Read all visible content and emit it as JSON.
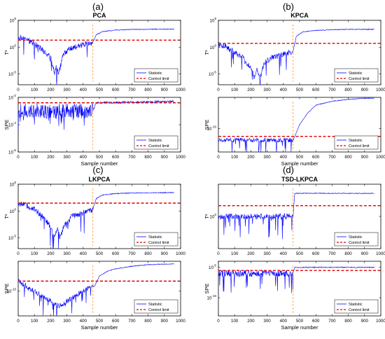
{
  "colors": {
    "statistic": "#0000ff",
    "control_limit": "#e00000",
    "fault_line": "#ff8c1a",
    "axis": "#000000"
  },
  "panels": [
    {
      "letter": "(a)",
      "title": "PCA"
    },
    {
      "letter": "(b)",
      "title": "KPCA"
    },
    {
      "letter": "(c)",
      "title": "LKPCA"
    },
    {
      "letter": "(d)",
      "title": "TSD-LKPCA"
    }
  ],
  "chart_data": [
    {
      "type": "line",
      "panel": "(a)",
      "title": "PCA",
      "ylabel": "T²",
      "xlabel": "",
      "yscale": "log",
      "xlim": [
        0,
        1000
      ],
      "ylim": [
        1e-07,
        100000.0
      ],
      "xticks": [
        "0",
        "100",
        "200",
        "300",
        "400",
        "500",
        "600",
        "700",
        "800",
        "900",
        "1000"
      ],
      "yticks": [
        {
          "exp": "5",
          "value": 100000.0
        },
        {
          "exp": "0",
          "value": 1
        },
        {
          "exp": "-5",
          "value": 1e-05
        }
      ],
      "fault_sample": 460,
      "control_limit": 20,
      "legend": [
        "Statistic",
        "Control limit"
      ],
      "legend_position": "bottom-right",
      "series": [
        {
          "name": "Statistic",
          "points": [
            [
              0,
              80
            ],
            [
              50,
              30
            ],
            [
              100,
              5
            ],
            [
              150,
              0.3
            ],
            [
              200,
              0.01
            ],
            [
              225,
              1e-05
            ],
            [
              235,
              0.0002
            ],
            [
              250,
              1e-05
            ],
            [
              275,
              0.05
            ],
            [
              300,
              0.2
            ],
            [
              350,
              1
            ],
            [
              400,
              3
            ],
            [
              440,
              5
            ],
            [
              460,
              8
            ],
            [
              480,
              200
            ],
            [
              520,
              800
            ],
            [
              600,
              1500
            ],
            [
              700,
              2000
            ],
            [
              800,
              2200
            ],
            [
              960,
              2300
            ]
          ]
        }
      ]
    },
    {
      "type": "line",
      "panel": "(a)",
      "ylabel": "SPE",
      "xlabel": "Sample number",
      "yscale": "log",
      "xlim": [
        0,
        1000
      ],
      "ylim": [
        1e-06,
        0.01
      ],
      "xticks": [
        "0",
        "100",
        "200",
        "300",
        "400",
        "500",
        "600",
        "700",
        "800",
        "900",
        "1000"
      ],
      "yticks": [
        {
          "exp": "-2",
          "value": 0.01
        },
        {
          "exp": "-4",
          "value": 0.0001
        },
        {
          "exp": "-6",
          "value": 1e-06
        }
      ],
      "fault_sample": 460,
      "control_limit": 0.004,
      "legend": [
        "Statistic",
        "Control limit"
      ],
      "legend_position": "bottom-right",
      "series": [
        {
          "name": "Statistic",
          "points": [
            [
              0,
              0.001
            ],
            [
              460,
              0.001
            ],
            [
              480,
              0.004
            ],
            [
              960,
              0.005
            ]
          ]
        }
      ]
    },
    {
      "type": "line",
      "panel": "(b)",
      "title": "KPCA",
      "ylabel": "T²",
      "xlabel": "",
      "yscale": "log",
      "xlim": [
        0,
        1000
      ],
      "ylim": [
        1e-07,
        100000.0
      ],
      "xticks": [
        "0",
        "100",
        "200",
        "300",
        "400",
        "500",
        "600",
        "700",
        "800",
        "900",
        "1000"
      ],
      "yticks": [
        {
          "exp": "5",
          "value": 100000.0
        },
        {
          "exp": "0",
          "value": 1
        },
        {
          "exp": "-5",
          "value": 1e-05
        }
      ],
      "fault_sample": 460,
      "control_limit": 5,
      "legend": [
        "Statistic",
        "Control limit"
      ],
      "legend_position": "bottom-right",
      "series": [
        {
          "name": "Statistic",
          "points": [
            [
              0,
              5
            ],
            [
              50,
              1
            ],
            [
              100,
              0.1
            ],
            [
              150,
              0.01
            ],
            [
              200,
              0.0001
            ],
            [
              225,
              1e-06
            ],
            [
              240,
              0.0001
            ],
            [
              255,
              1e-06
            ],
            [
              280,
              0.001
            ],
            [
              330,
              0.01
            ],
            [
              400,
              0.05
            ],
            [
              440,
              0.1
            ],
            [
              460,
              0.2
            ],
            [
              480,
              100
            ],
            [
              520,
              700
            ],
            [
              600,
              1300
            ],
            [
              700,
              1800
            ],
            [
              800,
              2000
            ],
            [
              960,
              2100
            ]
          ]
        }
      ]
    },
    {
      "type": "line",
      "panel": "(b)",
      "ylabel": "SPE",
      "xlabel": "Sample number",
      "yscale": "log",
      "xlim": [
        0,
        1000
      ],
      "ylim": [
        1e-16,
        0.01
      ],
      "xticks": [
        "0",
        "100",
        "200",
        "300",
        "400",
        "500",
        "600",
        "700",
        "800",
        "900",
        "1000"
      ],
      "yticks": [
        {
          "exp": "-10",
          "value": 1e-10
        }
      ],
      "fault_sample": 460,
      "control_limit": 1e-12,
      "legend": [
        "Statistic",
        "Control limit"
      ],
      "legend_position": "bottom-right",
      "series": [
        {
          "name": "Statistic",
          "points": [
            [
              0,
              1e-13
            ],
            [
              460,
              1e-13
            ],
            [
              470,
              1e-12
            ],
            [
              500,
              1e-09
            ],
            [
              550,
              1e-06
            ],
            [
              600,
              0.0001
            ],
            [
              700,
              0.001
            ],
            [
              800,
              0.003
            ],
            [
              900,
              0.006
            ],
            [
              960,
              0.006
            ]
          ]
        }
      ]
    },
    {
      "type": "line",
      "panel": "(c)",
      "title": "LKPCA",
      "ylabel": "T²",
      "xlabel": "",
      "yscale": "log",
      "xlim": [
        0,
        1000
      ],
      "ylim": [
        1e-07,
        100000.0
      ],
      "xticks": [
        "0",
        "100",
        "200",
        "300",
        "400",
        "500",
        "600",
        "700",
        "800",
        "900",
        "1000"
      ],
      "yticks": [
        {
          "exp": "5",
          "value": 100000.0
        },
        {
          "exp": "0",
          "value": 1
        },
        {
          "exp": "-5",
          "value": 1e-05
        }
      ],
      "fault_sample": 460,
      "control_limit": 30,
      "legend": [
        "Statistic",
        "Control limit"
      ],
      "legend_position": "bottom-right",
      "series": [
        {
          "name": "Statistic",
          "points": [
            [
              0,
              30
            ],
            [
              50,
              10
            ],
            [
              100,
              2
            ],
            [
              150,
              0.1
            ],
            [
              200,
              0.001
            ],
            [
              225,
              1e-05
            ],
            [
              240,
              0.001
            ],
            [
              255,
              1e-05
            ],
            [
              280,
              0.001
            ],
            [
              330,
              0.1
            ],
            [
              400,
              0.5
            ],
            [
              440,
              1
            ],
            [
              460,
              2
            ],
            [
              480,
              200
            ],
            [
              520,
              1000
            ],
            [
              600,
              1800
            ],
            [
              700,
              2300
            ],
            [
              800,
              2600
            ],
            [
              960,
              2800
            ]
          ]
        }
      ]
    },
    {
      "type": "line",
      "panel": "(c)",
      "ylabel": "SPE",
      "xlabel": "Sample number",
      "yscale": "log",
      "xlim": [
        0,
        1000
      ],
      "ylim": [
        1e-15,
        0.0001
      ],
      "xticks": [
        "0",
        "100",
        "200",
        "300",
        "400",
        "500",
        "600",
        "700",
        "800",
        "900",
        "1000"
      ],
      "yticks": [
        {
          "exp": "-10",
          "value": 1e-10
        }
      ],
      "fault_sample": 460,
      "control_limit": 1e-08,
      "legend": [
        "Statistic",
        "Control limit"
      ],
      "legend_position": "bottom-right",
      "series": [
        {
          "name": "Statistic",
          "points": [
            [
              0,
              1e-08
            ],
            [
              50,
              1e-09
            ],
            [
              100,
              1e-10
            ],
            [
              150,
              1e-11
            ],
            [
              200,
              1e-12
            ],
            [
              250,
              1e-13
            ],
            [
              300,
              1e-12
            ],
            [
              350,
              1e-11
            ],
            [
              400,
              1e-10
            ],
            [
              450,
              1e-09
            ],
            [
              470,
              1e-09
            ],
            [
              500,
              1e-07
            ],
            [
              550,
              1e-06
            ],
            [
              600,
              3e-06
            ],
            [
              700,
              1e-05
            ],
            [
              800,
              2e-05
            ],
            [
              960,
              3e-05
            ]
          ]
        }
      ]
    },
    {
      "type": "line",
      "panel": "(d)",
      "title": "TSD-LKPCA",
      "ylabel": "T²",
      "xlabel": "",
      "yscale": "log",
      "xlim": [
        0,
        1000
      ],
      "ylim": [
        1e-06,
        1000000.0
      ],
      "xticks": [
        "0",
        "100",
        "200",
        "300",
        "400",
        "500",
        "600",
        "700",
        "800",
        "900",
        "1000"
      ],
      "yticks": [
        {
          "exp": "0",
          "value": 1
        }
      ],
      "fault_sample": 460,
      "control_limit": 100,
      "legend": [
        "Statistic",
        "Control limit"
      ],
      "legend_position": "bottom-right",
      "series": [
        {
          "name": "Statistic",
          "points": [
            [
              0,
              1
            ],
            [
              460,
              1
            ],
            [
              470,
              20000
            ],
            [
              960,
              20000
            ]
          ]
        }
      ]
    },
    {
      "type": "line",
      "panel": "(d)",
      "ylabel": "SPE",
      "xlabel": "Sample number",
      "yscale": "log",
      "xlim": [
        0,
        1000
      ],
      "ylim": [
        1e-13,
        0.0001
      ],
      "xticks": [
        "0",
        "100",
        "200",
        "300",
        "400",
        "500",
        "600",
        "700",
        "800",
        "900",
        "1000"
      ],
      "yticks": [
        {
          "exp": "-5",
          "value": 1e-05
        },
        {
          "exp": "-10",
          "value": 1e-10
        }
      ],
      "fault_sample": 460,
      "control_limit": 3e-06,
      "legend": [
        "Statistic",
        "Control limit"
      ],
      "legend_position": "bottom-right",
      "series": [
        {
          "name": "Statistic",
          "points": [
            [
              0,
              1e-06
            ],
            [
              460,
              1e-06
            ],
            [
              470,
              1e-05
            ],
            [
              960,
              1e-05
            ]
          ]
        }
      ]
    }
  ]
}
